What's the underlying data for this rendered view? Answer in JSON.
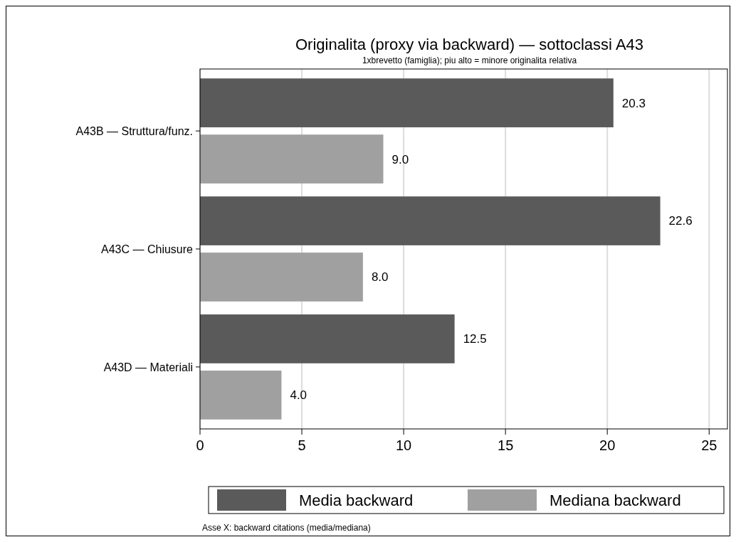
{
  "chart_data": {
    "type": "bar",
    "orientation": "horizontal",
    "title": "Originalita (proxy via backward) — sottoclassi A43",
    "subtitle": "1xbrevetto (famiglia); piu alto = minore originalita relativa",
    "categories": [
      "A43B — Struttura/funz.",
      "A43C — Chiusure",
      "A43D — Materiali"
    ],
    "series": [
      {
        "name": "Media backward",
        "color": "#5a5a5a",
        "values": [
          20.3,
          22.6,
          12.5
        ],
        "value_labels": [
          "20.3",
          "22.6",
          "12.5"
        ]
      },
      {
        "name": "Mediana backward",
        "color": "#a0a0a0",
        "values": [
          9.0,
          8.0,
          4.0
        ],
        "value_labels": [
          "9.0",
          "8.0",
          "4.0"
        ]
      }
    ],
    "xlim": [
      0,
      25.9
    ],
    "xticks": [
      0,
      5,
      10,
      15,
      20,
      25
    ],
    "grid": "x",
    "legend": "bottom",
    "annotations": [
      "Asse X: backward citations (media/mediana)"
    ]
  }
}
